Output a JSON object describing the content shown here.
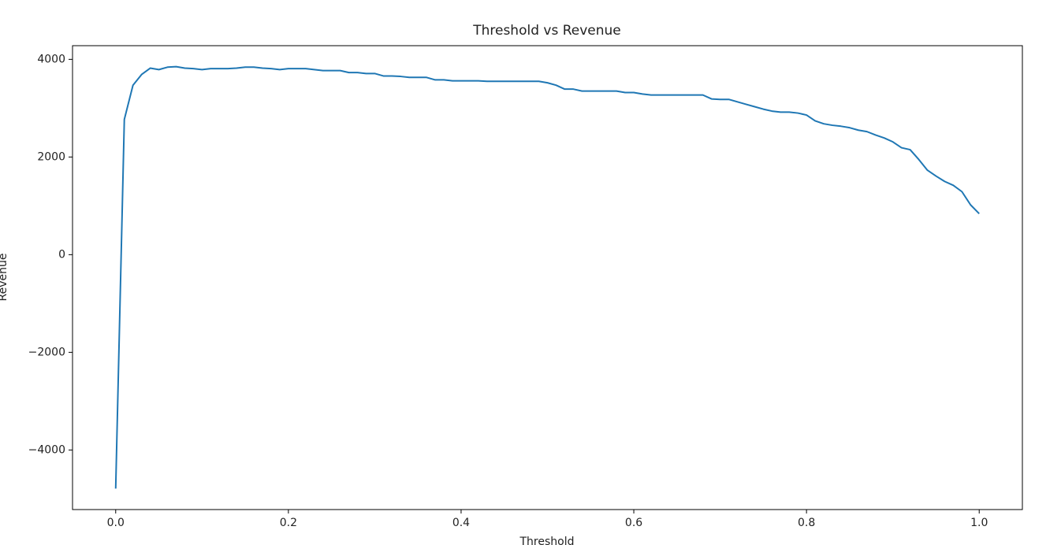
{
  "chart_data": {
    "type": "line",
    "title": "Threshold vs Revenue",
    "x_label": "Threshold",
    "y_label": "Revenue",
    "x": [
      0,
      0.01,
      0.02,
      0.03,
      0.04,
      0.05,
      0.06,
      0.07,
      0.08,
      0.09,
      0.1,
      0.11,
      0.12,
      0.13,
      0.14,
      0.15,
      0.16,
      0.17,
      0.18,
      0.19,
      0.2,
      0.21,
      0.22,
      0.23,
      0.24,
      0.25,
      0.26,
      0.27,
      0.28,
      0.29,
      0.3,
      0.31,
      0.32,
      0.33,
      0.34,
      0.35,
      0.36,
      0.37,
      0.38,
      0.39,
      0.4,
      0.41,
      0.42,
      0.43,
      0.44,
      0.45,
      0.46,
      0.47,
      0.48,
      0.49,
      0.5,
      0.51,
      0.52,
      0.53,
      0.54,
      0.55,
      0.56,
      0.57,
      0.58,
      0.59,
      0.6,
      0.61,
      0.62,
      0.63,
      0.64,
      0.65,
      0.66,
      0.67,
      0.68,
      0.69,
      0.7,
      0.71,
      0.72,
      0.73,
      0.74,
      0.75,
      0.76,
      0.77,
      0.78,
      0.79,
      0.8,
      0.81,
      0.82,
      0.83,
      0.84,
      0.85,
      0.86,
      0.87,
      0.88,
      0.89,
      0.9,
      0.91,
      0.92,
      0.93,
      0.94,
      0.95,
      0.96,
      0.97,
      0.98,
      0.99,
      1
    ],
    "series": [
      {
        "name": "Revenue",
        "color": "#1f77b4",
        "values": [
          -4790,
          2770,
          3470,
          3690,
          3820,
          3790,
          3840,
          3850,
          3820,
          3810,
          3790,
          3810,
          3810,
          3810,
          3820,
          3840,
          3840,
          3820,
          3810,
          3790,
          3810,
          3810,
          3810,
          3790,
          3770,
          3770,
          3770,
          3730,
          3730,
          3710,
          3710,
          3660,
          3660,
          3650,
          3630,
          3630,
          3630,
          3580,
          3580,
          3560,
          3560,
          3560,
          3560,
          3550,
          3550,
          3550,
          3550,
          3550,
          3550,
          3550,
          3520,
          3470,
          3390,
          3390,
          3350,
          3350,
          3350,
          3350,
          3350,
          3320,
          3320,
          3290,
          3270,
          3270,
          3270,
          3270,
          3270,
          3270,
          3270,
          3190,
          3180,
          3180,
          3130,
          3080,
          3030,
          2980,
          2940,
          2920,
          2920,
          2900,
          2860,
          2740,
          2680,
          2650,
          2630,
          2600,
          2550,
          2520,
          2450,
          2390,
          2310,
          2190,
          2150,
          1950,
          1730,
          1610,
          1500,
          1420,
          1290,
          1020,
          840
        ]
      }
    ],
    "xlim": [
      -0.05,
      1.05
    ],
    "ylim": [
      -5220,
      4280
    ],
    "xticks": [
      {
        "value": 0,
        "label": "0.0"
      },
      0.2,
      0.4,
      0.6,
      0.8,
      {
        "value": 1,
        "label": "1.0"
      }
    ],
    "yticks": [
      {
        "value": -4000,
        "label": "−4000"
      },
      {
        "value": -2000,
        "label": "−2000"
      },
      0,
      2000,
      4000
    ],
    "grid": false
  }
}
